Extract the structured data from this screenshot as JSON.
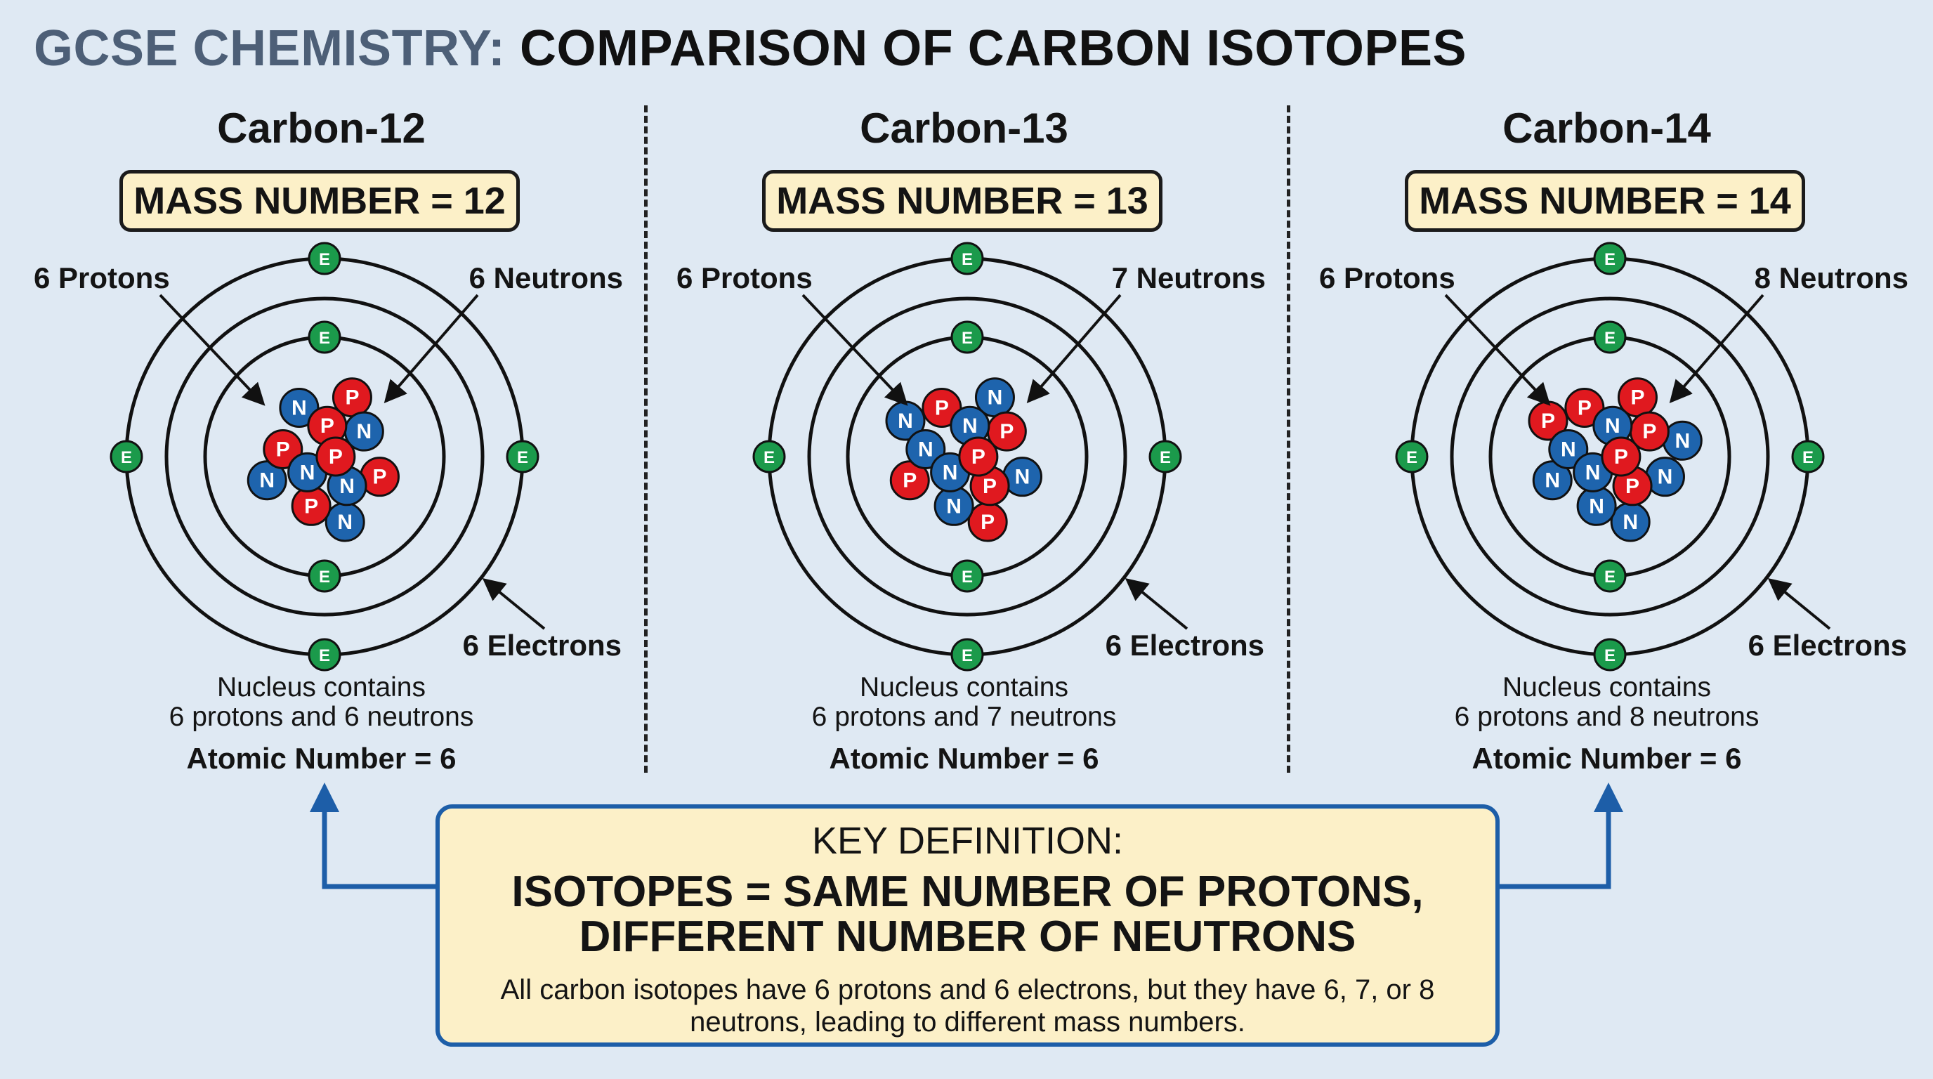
{
  "header": {
    "title_prefix": "GCSE CHEMISTRY:",
    "title_main": "COMPARISON OF CARBON ISOTOPES"
  },
  "isotopes": [
    {
      "name": "Carbon-12",
      "mass_number_label": "MASS NUMBER = 12",
      "protons_label": "6 Protons",
      "neutrons_label": "6 Neutrons",
      "electrons_label": "6 Electrons",
      "nucleus_line1": "Nucleus contains",
      "nucleus_line2": "6 protons and 6 neutrons",
      "atomic_number_label": "Atomic Number = 6",
      "protons": 6,
      "neutrons": 6,
      "electrons": 6
    },
    {
      "name": "Carbon-13",
      "mass_number_label": "MASS NUMBER = 13",
      "protons_label": "6 Protons",
      "neutrons_label": "7 Neutrons",
      "electrons_label": "6 Electrons",
      "nucleus_line1": "Nucleus contains",
      "nucleus_line2": "6 protons and 7 neutrons",
      "atomic_number_label": "Atomic Number = 6",
      "protons": 6,
      "neutrons": 7,
      "electrons": 6
    },
    {
      "name": "Carbon-14",
      "mass_number_label": "MASS NUMBER = 14",
      "protons_label": "6 Protons",
      "neutrons_label": "8 Neutrons",
      "electrons_label": "6 Electrons",
      "nucleus_line1": "Nucleus contains",
      "nucleus_line2": "6 protons and 8 neutrons",
      "atomic_number_label": "Atomic Number = 6",
      "protons": 6,
      "neutrons": 8,
      "electrons": 6
    }
  ],
  "particle_letters": {
    "proton": "P",
    "neutron": "N",
    "electron": "E"
  },
  "colors": {
    "background": "#dfe9f3",
    "proton": "#e0191f",
    "neutron": "#1e64ad",
    "electron": "#1b9a4b",
    "key_border": "#1d5ea8",
    "box_fill": "#fcf0c8"
  },
  "key_definition": {
    "heading": "KEY DEFINITION:",
    "main_line1": "ISOTOPES = SAME NUMBER OF PROTONS,",
    "main_line2": "DIFFERENT NUMBER OF NEUTRONS",
    "body_line1": "All carbon isotopes have 6 protons and 6 electrons, but they have 6, 7, or 8",
    "body_line2": "neutrons, leading to different mass numbers."
  }
}
